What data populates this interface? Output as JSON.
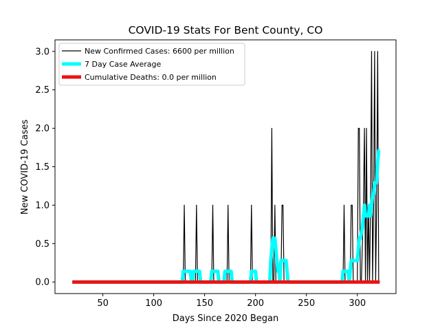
{
  "chart_data": {
    "type": "line",
    "title": "COVID-19 Stats For Bent County, CO",
    "xlabel": "Days Since 2020 Began",
    "ylabel": "New COVID-19 Cases",
    "xlim": [
      3,
      338
    ],
    "ylim": [
      -0.15,
      3.15
    ],
    "xticks": [
      50,
      100,
      150,
      200,
      250,
      300
    ],
    "yticks": [
      0.0,
      0.5,
      1.0,
      1.5,
      2.0,
      2.5,
      3.0
    ],
    "xtick_labels": [
      "50",
      "100",
      "150",
      "200",
      "250",
      "300"
    ],
    "ytick_labels": [
      "0.0",
      "0.5",
      "1.0",
      "1.5",
      "2.0",
      "2.5",
      "3.0"
    ],
    "grid": false,
    "legend_position": "top-left",
    "series": [
      {
        "name": "New Confirmed Cases: 6600 per million",
        "color": "#000000",
        "style": "thin",
        "x": [
          20,
          129,
          130,
          131,
          141,
          142,
          143,
          157,
          158,
          159,
          172,
          173,
          174,
          195,
          196,
          197,
          215,
          216,
          217,
          218,
          219,
          220,
          225,
          226,
          227,
          228,
          229,
          286,
          287,
          288,
          293,
          294,
          295,
          296,
          297,
          300,
          301,
          302,
          303,
          304,
          306,
          307,
          308,
          309,
          310,
          311,
          312,
          313,
          314,
          315,
          316,
          317,
          318,
          319,
          320,
          321,
          322
        ],
        "y": [
          0,
          0,
          1,
          0,
          0,
          1,
          0,
          0,
          1,
          0,
          0,
          1,
          0,
          0,
          1,
          0,
          0,
          2,
          0,
          0,
          1,
          0,
          0,
          1,
          1,
          0,
          0,
          0,
          1,
          0,
          0,
          1,
          1,
          0,
          0,
          0,
          2,
          2,
          0,
          0,
          1,
          2,
          0,
          2,
          0,
          1,
          0,
          1,
          3,
          0,
          1,
          3,
          0,
          1,
          3,
          0,
          0
        ]
      },
      {
        "name": "7 Day Case Average",
        "color": "#00ffff",
        "style": "thick",
        "x": [
          20,
          127,
          128,
          129,
          130,
          136,
          137,
          138,
          139,
          144,
          145,
          146,
          148,
          156,
          157,
          158,
          163,
          164,
          165,
          169,
          170,
          171,
          176,
          177,
          178,
          195,
          196,
          197,
          200,
          201,
          202,
          214,
          215,
          216,
          217,
          218,
          219,
          220,
          221,
          222,
          223,
          224,
          225,
          226,
          230,
          231,
          232,
          233,
          234,
          284,
          285,
          286,
          287,
          291,
          292,
          293,
          294,
          295,
          296,
          297,
          299,
          300,
          301,
          302,
          303,
          305,
          306,
          307,
          308,
          309,
          310,
          311,
          312,
          313,
          314,
          315,
          316,
          317,
          318,
          319,
          320,
          321,
          322
        ],
        "y": [
          0,
          0,
          0,
          0.14,
          0.14,
          0.14,
          0,
          0,
          0.14,
          0.14,
          0.14,
          0,
          0,
          0,
          0.14,
          0.14,
          0.14,
          0,
          0,
          0,
          0.14,
          0.14,
          0.14,
          0,
          0,
          0,
          0.14,
          0.14,
          0.14,
          0,
          0,
          0,
          0.28,
          0.43,
          0.57,
          0.57,
          0.57,
          0.43,
          0.28,
          0.14,
          0.14,
          0,
          0.28,
          0.28,
          0.28,
          0.14,
          0,
          0,
          0,
          0,
          0,
          0.14,
          0.14,
          0.14,
          0,
          0.14,
          0.28,
          0.28,
          0.28,
          0.28,
          0.28,
          0.28,
          0.43,
          0.57,
          0.57,
          0.71,
          0.86,
          1.0,
          0.86,
          0.86,
          0.86,
          0.86,
          1.0,
          0.86,
          1.0,
          1.14,
          1.14,
          1.29,
          1.29,
          1.29,
          1.57,
          1.71,
          1.71
        ]
      },
      {
        "name": "Cumulative Deaths: 0.0 per million",
        "color": "#ee1111",
        "style": "thick",
        "x": [
          20,
          322
        ],
        "y": [
          0,
          0
        ]
      }
    ]
  }
}
